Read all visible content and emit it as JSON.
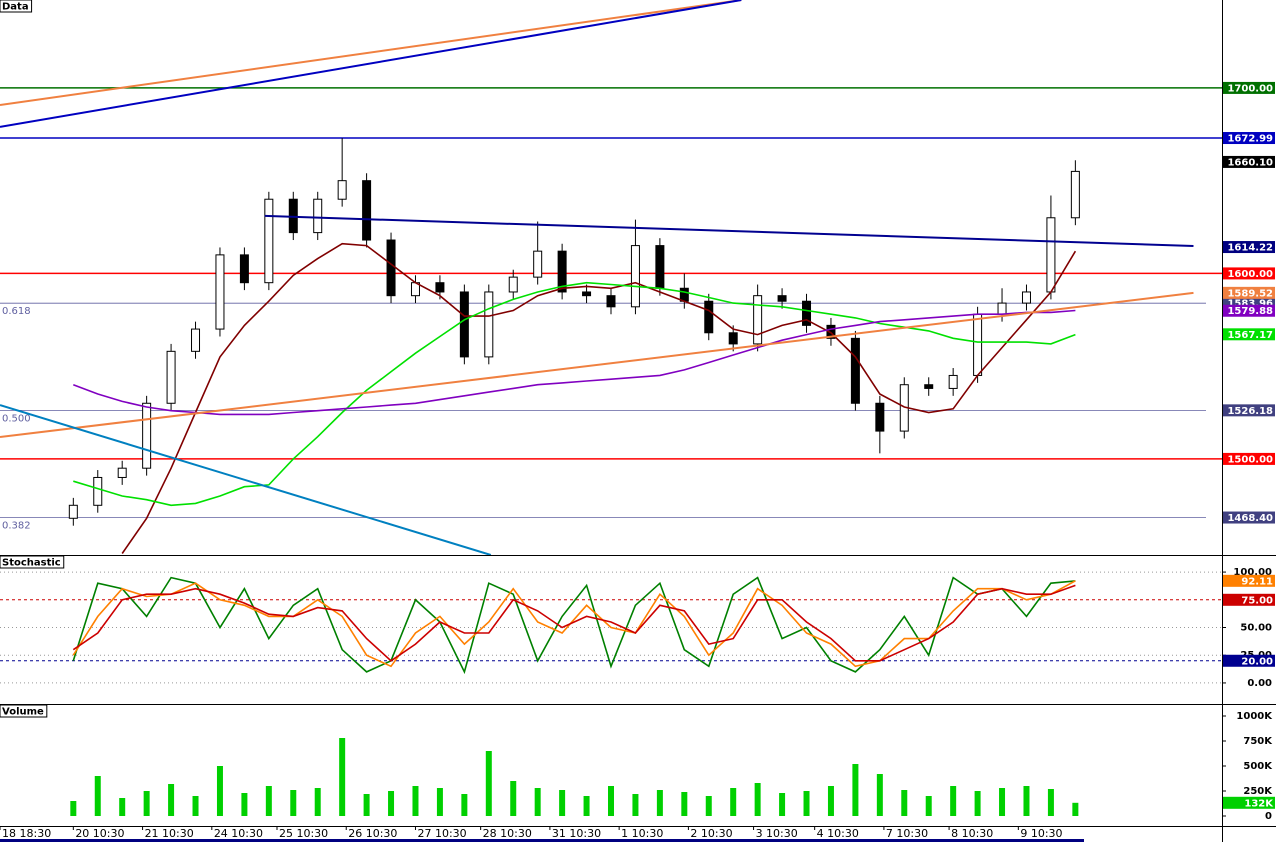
{
  "chart_data": [
    {
      "type": "candlestick",
      "title": "Data",
      "x": [
        18,
        24,
        30,
        36,
        42,
        48,
        54,
        60,
        66,
        72,
        78,
        84,
        90,
        96,
        102,
        108,
        114,
        120,
        126,
        132,
        138,
        144,
        150,
        156,
        162,
        168,
        174,
        180,
        186,
        192,
        198,
        204,
        210,
        216,
        222,
        228,
        234,
        240,
        246,
        252,
        258,
        264
      ],
      "xlim": [
        0,
        300
      ],
      "ylim": [
        1448.2,
        1747.4
      ],
      "up_color": "#ffffff",
      "down_color": "#000000",
      "ohlc": [
        [
          1468,
          1479,
          1464,
          1475
        ],
        [
          1475,
          1494,
          1471,
          1490
        ],
        [
          1490,
          1499,
          1486,
          1495
        ],
        [
          1495,
          1534,
          1491,
          1530
        ],
        [
          1530,
          1562,
          1526,
          1558
        ],
        [
          1558,
          1574,
          1554,
          1570
        ],
        [
          1570,
          1614,
          1566,
          1610
        ],
        [
          1610,
          1614,
          1591,
          1595
        ],
        [
          1595,
          1644,
          1591,
          1640
        ],
        [
          1640,
          1644,
          1618,
          1622
        ],
        [
          1622,
          1644,
          1618,
          1640
        ],
        [
          1640,
          1672.99,
          1636,
          1650
        ],
        [
          1650,
          1654,
          1614,
          1618
        ],
        [
          1618,
          1622,
          1584,
          1588
        ],
        [
          1588,
          1599,
          1584,
          1595
        ],
        [
          1595,
          1599,
          1586,
          1590
        ],
        [
          1590,
          1594,
          1551,
          1555
        ],
        [
          1555,
          1594,
          1551,
          1590
        ],
        [
          1590,
          1602,
          1586,
          1598
        ],
        [
          1598,
          1628,
          1594,
          1612
        ],
        [
          1612,
          1616,
          1586,
          1590
        ],
        [
          1590,
          1594,
          1584,
          1588
        ],
        [
          1588,
          1592,
          1578,
          1582
        ],
        [
          1582,
          1629,
          1578,
          1615
        ],
        [
          1615,
          1619,
          1588,
          1592
        ],
        [
          1592,
          1600,
          1581,
          1585
        ],
        [
          1585,
          1589,
          1564,
          1568
        ],
        [
          1568,
          1572,
          1558,
          1562
        ],
        [
          1562,
          1594,
          1558,
          1588
        ],
        [
          1588,
          1592,
          1581,
          1585
        ],
        [
          1585,
          1589,
          1568,
          1572
        ],
        [
          1572,
          1576,
          1561,
          1565
        ],
        [
          1565,
          1569,
          1526,
          1530
        ],
        [
          1530,
          1534,
          1503,
          1515
        ],
        [
          1515,
          1544,
          1511,
          1540
        ],
        [
          1540,
          1544,
          1534,
          1538
        ],
        [
          1538,
          1549,
          1534,
          1545
        ],
        [
          1545,
          1582,
          1541,
          1578
        ],
        [
          1578,
          1592,
          1574,
          1584
        ],
        [
          1584,
          1594,
          1580,
          1590
        ],
        [
          1590,
          1642,
          1586,
          1630
        ],
        [
          1630,
          1661,
          1626,
          1655
        ]
      ],
      "lines": [
        {
          "color": "#800000",
          "values": [
            null,
            null,
            1449,
            1468,
            1495,
            1525,
            1555,
            1572,
            1585,
            1599,
            1608,
            1616,
            1615,
            1605,
            1595,
            1588,
            1577,
            1577,
            1580,
            1588,
            1592,
            1593,
            1592,
            1595,
            1590,
            1585,
            1580,
            1570,
            1567,
            1572,
            1575,
            1568,
            1555,
            1535,
            1528,
            1525,
            1527,
            1545,
            1560,
            1575,
            1590,
            1612
          ]
        },
        {
          "color": "#00e000",
          "values": [
            1488,
            1484,
            1480,
            1478,
            1475,
            1476,
            1480,
            1485,
            1486,
            1500,
            1512,
            1525,
            1537,
            1547,
            1557,
            1566,
            1575,
            1581,
            1586,
            1590,
            1593,
            1595,
            1594,
            1593,
            1592,
            1590,
            1587,
            1584,
            1583,
            1582,
            1580,
            1578,
            1576,
            1573,
            1571,
            1569,
            1565,
            1563,
            1563,
            1563,
            1562,
            1567
          ]
        },
        {
          "color": "#8000c0",
          "values": [
            1540,
            1535,
            1531,
            1528,
            1526,
            1525,
            1524,
            1524,
            1524,
            1525,
            1526,
            1527,
            1528,
            1529,
            1530,
            1532,
            1534,
            1536,
            1538,
            1540,
            1541,
            1542,
            1543,
            1544,
            1545,
            1548,
            1552,
            1556,
            1560,
            1564,
            1567,
            1570,
            1572,
            1574,
            1575,
            1576,
            1577,
            1578,
            1578,
            1579,
            1579,
            1580
          ]
        }
      ],
      "trendlines": [
        {
          "color": "#f08040",
          "x": [
            0,
            182
          ],
          "y": [
            1690.8,
            1747.4
          ]
        },
        {
          "color": "#0000c0",
          "x": [
            0,
            182
          ],
          "y": [
            1679,
            1747.4
          ]
        },
        {
          "color": "#f08040",
          "x": [
            0,
            293
          ],
          "y": [
            1511.8,
            1589.5
          ]
        },
        {
          "color": "#000090",
          "x": [
            65,
            293
          ],
          "y": [
            1631,
            1614.8
          ]
        },
        {
          "color": "#0080c0",
          "x": [
            0,
            120.5
          ],
          "y": [
            1529,
            1448.2
          ]
        }
      ],
      "levels": [
        {
          "value": 1700,
          "label": "1700.00",
          "color": "#007000"
        },
        {
          "value": 1672.99,
          "label": "1672.99",
          "color": "#0000c0"
        },
        {
          "value": 1600,
          "label": "1600.00",
          "color": "#ff0000"
        },
        {
          "value": 1500,
          "label": "1500.00",
          "color": "#ff0000"
        }
      ],
      "fib": [
        {
          "value": 1583.96,
          "label": "1583.96",
          "ratio": "0.618"
        },
        {
          "value": 1526.18,
          "label": "1526.18",
          "ratio": "0.500"
        },
        {
          "value": 1468.4,
          "label": "1468.40",
          "ratio": "0.382"
        }
      ],
      "tags": [
        {
          "value": 1660.1,
          "label": "1660.10",
          "color": "#000000"
        },
        {
          "value": 1614.22,
          "label": "1614.22",
          "color": "#000080"
        },
        {
          "value": 1589.52,
          "label": "1589.52",
          "color": "#f08040"
        },
        {
          "value": 1579.88,
          "label": "1579.88",
          "color": "#8000c0"
        },
        {
          "value": 1567.17,
          "label": "1567.17",
          "color": "#00e000"
        }
      ]
    },
    {
      "type": "line",
      "title": "Stochastic",
      "x": [
        18,
        24,
        30,
        36,
        42,
        48,
        54,
        60,
        66,
        72,
        78,
        84,
        90,
        96,
        102,
        108,
        114,
        120,
        126,
        132,
        138,
        144,
        150,
        156,
        162,
        168,
        174,
        180,
        186,
        192,
        198,
        204,
        210,
        216,
        222,
        228,
        234,
        240,
        246,
        252,
        258,
        264
      ],
      "xlim": [
        0,
        300
      ],
      "ylim": [
        -19,
        114.5
      ],
      "yticks": [
        {
          "value": 100,
          "label": "100.00"
        },
        {
          "value": 50,
          "label": "50.00"
        },
        {
          "value": 25,
          "label": "25.00"
        },
        {
          "value": 0,
          "label": "0.00"
        }
      ],
      "level_style": "dashed",
      "levels": [
        {
          "value": 75,
          "label": "75.00",
          "color": "#cc0000"
        },
        {
          "value": 20,
          "label": "20.00",
          "color": "#000090"
        }
      ],
      "lines": [
        {
          "color": "#008000",
          "values": [
            20,
            90,
            85,
            60,
            95,
            90,
            50,
            85,
            40,
            70,
            85,
            30,
            10,
            20,
            75,
            55,
            10,
            90,
            80,
            20,
            60,
            88,
            15,
            70,
            90,
            30,
            15,
            80,
            95,
            40,
            50,
            20,
            10,
            30,
            60,
            25,
            95,
            80,
            85,
            60,
            90,
            92
          ]
        },
        {
          "color": "#ff8000",
          "values": [
            25,
            60,
            85,
            78,
            80,
            90,
            75,
            70,
            60,
            60,
            75,
            60,
            25,
            15,
            45,
            60,
            35,
            55,
            85,
            55,
            45,
            70,
            50,
            45,
            80,
            60,
            25,
            45,
            85,
            70,
            45,
            35,
            15,
            20,
            40,
            40,
            65,
            85,
            85,
            75,
            80,
            92.11
          ]
        },
        {
          "color": "#cc0000",
          "values": [
            30,
            45,
            75,
            80,
            80,
            85,
            80,
            72,
            62,
            60,
            68,
            65,
            40,
            20,
            35,
            55,
            45,
            45,
            75,
            65,
            50,
            60,
            55,
            45,
            70,
            65,
            35,
            40,
            75,
            75,
            55,
            40,
            20,
            20,
            30,
            40,
            55,
            80,
            85,
            80,
            80,
            88
          ]
        }
      ],
      "tags": [
        {
          "value": 92.11,
          "label": "92.11",
          "color": "#ff8000"
        }
      ]
    },
    {
      "type": "bar",
      "title": "Volume",
      "x": [
        18,
        24,
        30,
        36,
        42,
        48,
        54,
        60,
        66,
        72,
        78,
        84,
        90,
        96,
        102,
        108,
        114,
        120,
        126,
        132,
        138,
        144,
        150,
        156,
        162,
        168,
        174,
        180,
        186,
        192,
        198,
        204,
        210,
        216,
        222,
        228,
        234,
        240,
        246,
        252,
        258,
        264
      ],
      "xlim": [
        0,
        300
      ],
      "ylim": [
        -100000,
        1110000
      ],
      "color": "#00d000",
      "values": [
        150000,
        400000,
        180000,
        250000,
        320000,
        200000,
        500000,
        230000,
        300000,
        260000,
        280000,
        780000,
        220000,
        250000,
        300000,
        280000,
        220000,
        650000,
        350000,
        280000,
        260000,
        200000,
        300000,
        220000,
        260000,
        240000,
        200000,
        280000,
        330000,
        230000,
        250000,
        300000,
        520000,
        420000,
        260000,
        200000,
        300000,
        250000,
        280000,
        300000,
        270000,
        132000
      ],
      "yticks": [
        {
          "value": 1000000,
          "label": "1000K"
        },
        {
          "value": 750000,
          "label": "750K"
        },
        {
          "value": 500000,
          "label": "500K"
        },
        {
          "value": 250000,
          "label": "250K"
        },
        0
      ],
      "tags": [
        {
          "value": 132000,
          "label": "132K",
          "color": "#00d000"
        }
      ],
      "xticks": [
        {
          "value": 0,
          "label": "18 18:30"
        },
        {
          "value": 18,
          "label": "20 10:30"
        },
        {
          "value": 35,
          "label": "21 10:30"
        },
        {
          "value": 52,
          "label": "24 10:30"
        },
        {
          "value": 68,
          "label": "25 10:30"
        },
        {
          "value": 85,
          "label": "26 10:30"
        },
        {
          "value": 102,
          "label": "27 10:30"
        },
        {
          "value": 118,
          "label": "28 10:30"
        },
        {
          "value": 135,
          "label": "31 10:30"
        },
        {
          "value": 152,
          "label": "1 10:30"
        },
        {
          "value": 169,
          "label": "2 10:30"
        },
        {
          "value": 185,
          "label": "3 10:30"
        },
        {
          "value": 200,
          "label": "4 10:30"
        },
        {
          "value": 217,
          "label": "7 10:30"
        },
        {
          "value": 233,
          "label": "8 10:30"
        },
        {
          "value": 250,
          "label": "9 10:30"
        }
      ]
    }
  ]
}
